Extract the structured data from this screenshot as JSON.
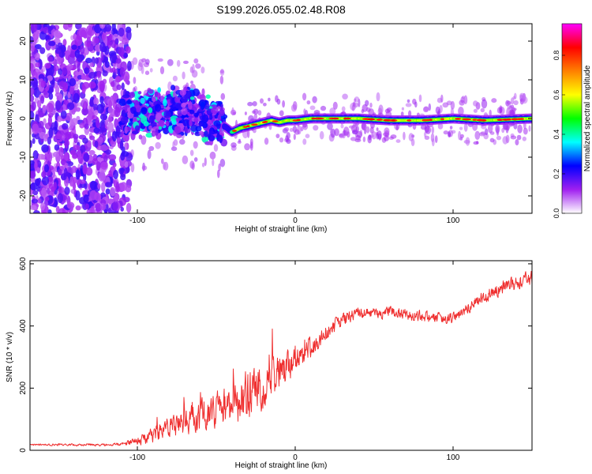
{
  "title": "S199.2026.055.02.48.R08",
  "chart_data": [
    {
      "type": "heatmap",
      "xlabel": "Height of straight line (km)",
      "ylabel": "Frequency (Hz)",
      "xlim": [
        -168,
        150
      ],
      "ylim": [
        -24.5,
        24.5
      ],
      "xticks": [
        -100,
        0,
        100
      ],
      "yticks": [
        -20,
        -10,
        0,
        10,
        20
      ],
      "colorbar": {
        "label": "Normalized spectral amplitude",
        "range": [
          0,
          0.96
        ],
        "ticks": [
          "0.0",
          "0.2",
          "0.4",
          "0.6",
          "0.8"
        ],
        "tick_values": [
          0.0,
          0.2,
          0.4,
          0.6,
          0.8
        ],
        "colors": [
          "#ffffff",
          "#a020f0",
          "#0000ff",
          "#00ffff",
          "#00ff00",
          "#ffff00",
          "#ff8000",
          "#ff0000",
          "#ff00ff"
        ]
      },
      "ridge": {
        "x": [
          -110,
          -100,
          -90,
          -80,
          -70,
          -60,
          -50,
          -45,
          -40,
          -35,
          -30,
          -25,
          -20,
          -15,
          -10,
          -5,
          0,
          10,
          20,
          40,
          60,
          80,
          100,
          120,
          150
        ],
        "y": [
          0.5,
          1,
          1.5,
          1,
          1.5,
          1,
          -1,
          -2,
          -3.5,
          -2.5,
          -2,
          -1.5,
          -1,
          -0.5,
          -1,
          -0.5,
          -0.5,
          0,
          0,
          0,
          -0.5,
          -0.5,
          0,
          -0.5,
          0
        ]
      },
      "regions": {
        "noise": [
          -168,
          -110
        ],
        "transition": [
          -110,
          -45
        ],
        "stable": [
          -45,
          150
        ]
      }
    },
    {
      "type": "line",
      "xlabel": "Height of straight line (km)",
      "ylabel": "SNR (10 * v/v)",
      "xlim": [
        -168,
        150
      ],
      "ylim": [
        0,
        610
      ],
      "xticks": [
        -100,
        0,
        100
      ],
      "yticks": [
        0,
        200,
        400,
        600
      ],
      "color": "#ef2f2f",
      "trend": {
        "x": [
          -168,
          -120,
          -110,
          -100,
          -90,
          -80,
          -70,
          -60,
          -50,
          -40,
          -30,
          -20,
          -10,
          0,
          10,
          20,
          30,
          40,
          60,
          80,
          95,
          105,
          115,
          130,
          150
        ],
        "y": [
          18,
          18,
          20,
          30,
          50,
          70,
          90,
          110,
          130,
          150,
          170,
          200,
          240,
          280,
          330,
          380,
          420,
          440,
          445,
          430,
          420,
          440,
          480,
          520,
          555
        ]
      },
      "noise_amplitude": {
        "x": [
          -168,
          -110,
          -100,
          -70,
          -50,
          -30,
          -10,
          0,
          20,
          40,
          100,
          150
        ],
        "y": [
          4,
          6,
          20,
          55,
          80,
          110,
          90,
          60,
          40,
          25,
          25,
          35
        ]
      }
    }
  ]
}
